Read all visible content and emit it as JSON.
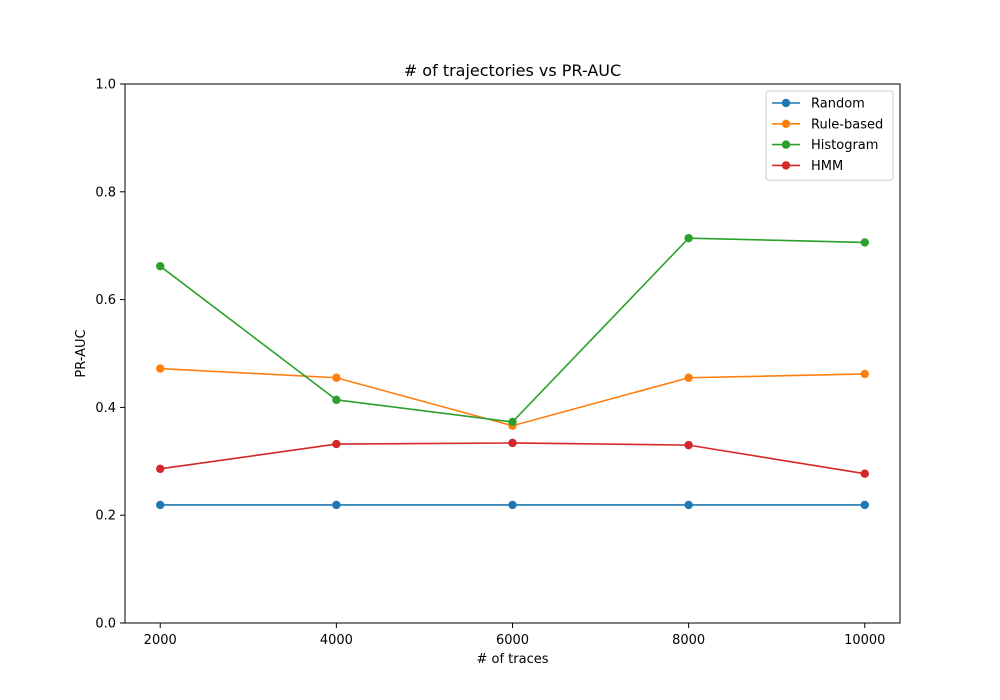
{
  "chart_data": {
    "type": "line",
    "title": "# of trajectories vs PR-AUC",
    "xlabel": "# of traces",
    "ylabel": "PR-AUC",
    "x": [
      2000,
      4000,
      6000,
      8000,
      10000
    ],
    "xticks": [
      "2000",
      "4000",
      "6000",
      "8000",
      "10000"
    ],
    "yticks": [
      "0.0",
      "0.2",
      "0.4",
      "0.6",
      "0.8",
      "1.0"
    ],
    "ylim": [
      0.0,
      1.0
    ],
    "xlim": [
      1600,
      10400
    ],
    "grid": false,
    "legend_position": "top-right",
    "series": [
      {
        "name": "Random",
        "color": "#1f77b4",
        "values": [
          0.219,
          0.219,
          0.219,
          0.219,
          0.219
        ]
      },
      {
        "name": "Rule-based",
        "color": "#ff7f0e",
        "values": [
          0.472,
          0.455,
          0.366,
          0.455,
          0.462
        ]
      },
      {
        "name": "Histogram",
        "color": "#2ca02c",
        "values": [
          0.662,
          0.414,
          0.373,
          0.714,
          0.706
        ]
      },
      {
        "name": "HMM",
        "color": "#d62728",
        "values": [
          0.286,
          0.332,
          0.334,
          0.33,
          0.277
        ]
      }
    ]
  }
}
